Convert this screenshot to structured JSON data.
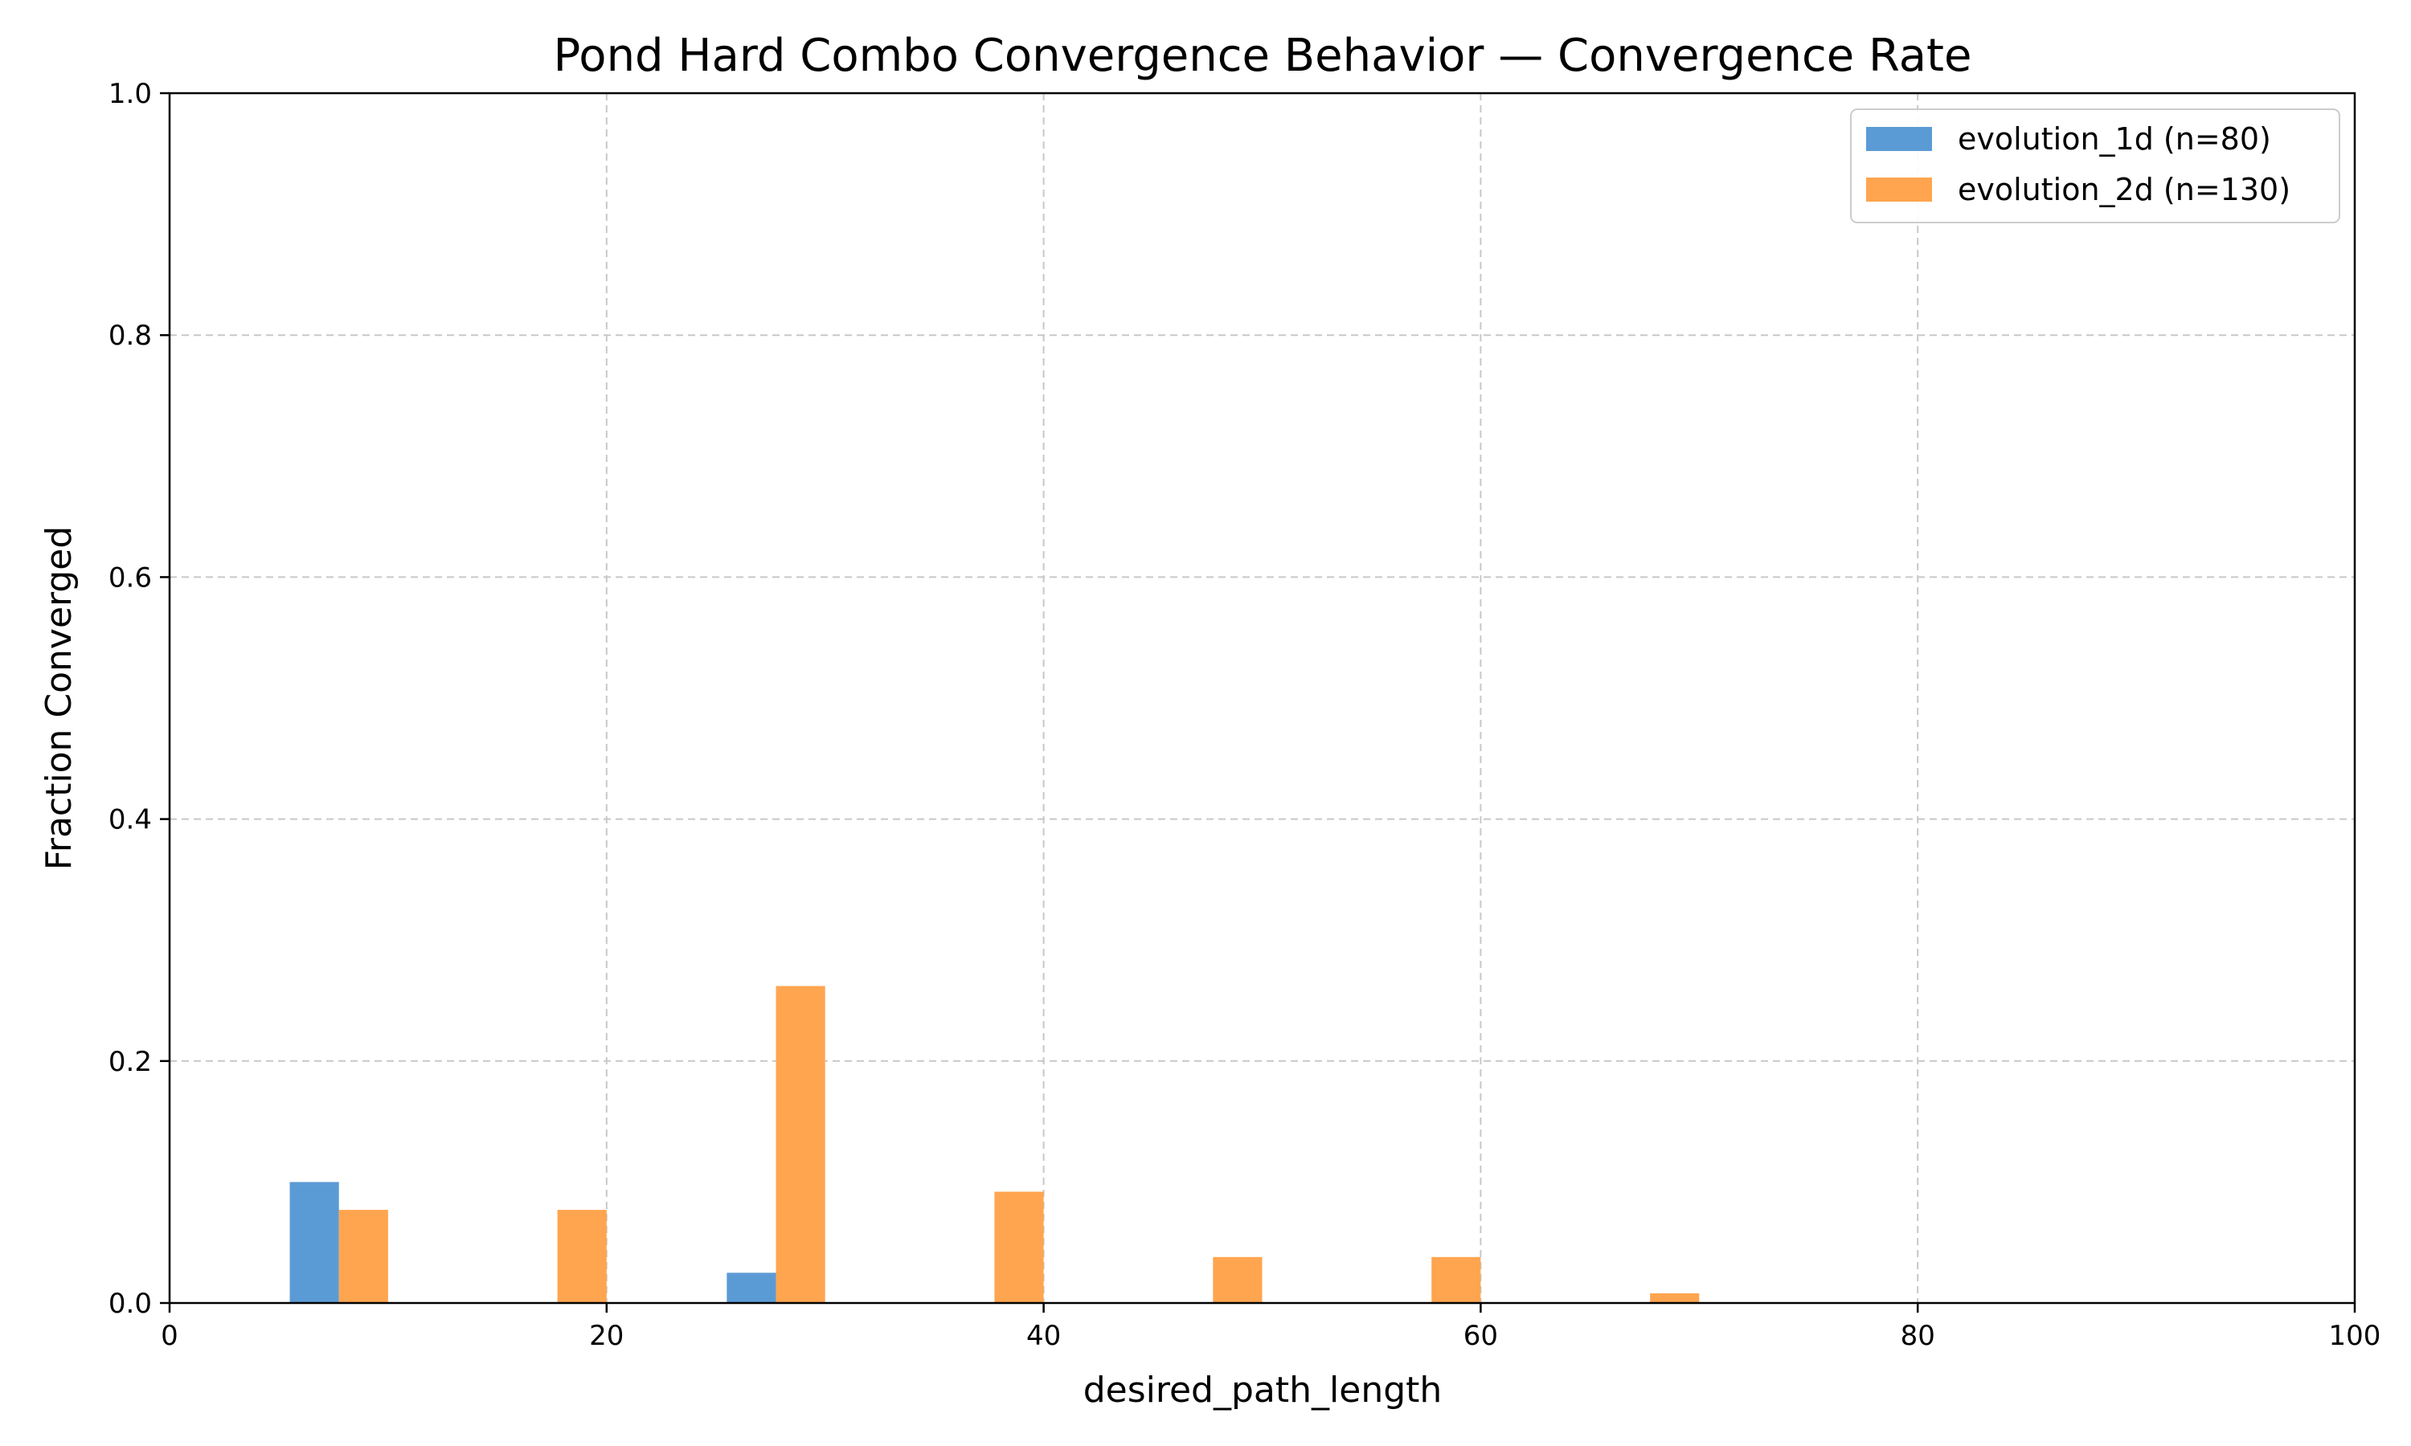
{
  "chart_data": {
    "type": "bar",
    "title": "Pond Hard Combo Convergence Behavior — Convergence Rate",
    "xlabel": "desired_path_length",
    "ylabel": "Fraction Converged",
    "xlim": [
      0,
      100
    ],
    "ylim": [
      0,
      1.0
    ],
    "xticks": [
      0,
      20,
      40,
      60,
      80,
      100
    ],
    "yticks": [
      0.0,
      0.2,
      0.4,
      0.6,
      0.8,
      1.0
    ],
    "xtick_labels": [
      "0",
      "20",
      "40",
      "60",
      "80",
      "100"
    ],
    "ytick_labels": [
      "0.0",
      "0.2",
      "0.4",
      "0.6",
      "0.8",
      "1.0"
    ],
    "grid": true,
    "legend_position": "top-right",
    "series": [
      {
        "name": "evolution_1d (n=80)",
        "color": "#5b9bd5",
        "bars": [
          {
            "x0": 5.5,
            "x1": 7.75,
            "y": 0.1
          },
          {
            "x0": 25.5,
            "x1": 27.75,
            "y": 0.025
          }
        ]
      },
      {
        "name": "evolution_2d (n=130)",
        "color": "#ffa54f",
        "bars": [
          {
            "x0": 7.75,
            "x1": 10.0,
            "y": 0.077
          },
          {
            "x0": 17.75,
            "x1": 20.0,
            "y": 0.077
          },
          {
            "x0": 27.75,
            "x1": 30.0,
            "y": 0.262
          },
          {
            "x0": 37.75,
            "x1": 40.0,
            "y": 0.092
          },
          {
            "x0": 47.75,
            "x1": 50.0,
            "y": 0.038
          },
          {
            "x0": 57.75,
            "x1": 60.0,
            "y": 0.038
          },
          {
            "x0": 67.75,
            "x1": 70.0,
            "y": 0.008
          }
        ]
      }
    ]
  }
}
